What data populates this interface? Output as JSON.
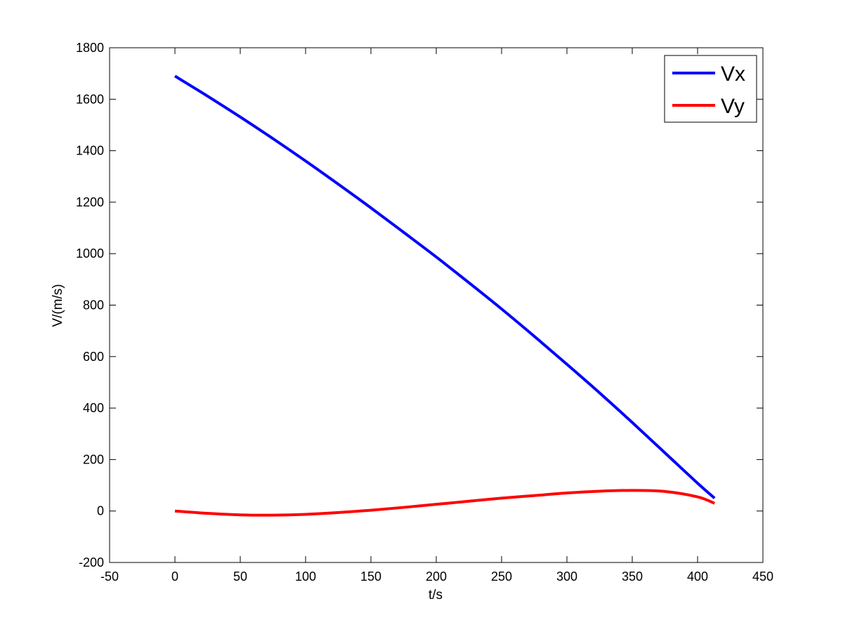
{
  "chart_data": {
    "type": "line",
    "title": "",
    "xlabel": "t/s",
    "ylabel": "V/(m/s)",
    "xlim": [
      -50,
      450
    ],
    "ylim": [
      -200,
      1800
    ],
    "xticks": [
      "-50",
      "0",
      "50",
      "100",
      "150",
      "200",
      "250",
      "300",
      "350",
      "400",
      "450"
    ],
    "yticks": [
      "-200",
      "0",
      "200",
      "400",
      "600",
      "800",
      "1000",
      "1200",
      "1400",
      "1600",
      "1800"
    ],
    "grid": false,
    "legend": {
      "position": "top-right",
      "entries": [
        "Vx",
        "Vy"
      ]
    },
    "series": [
      {
        "name": "Vx",
        "color": "#0000ff",
        "x": [
          0,
          25,
          50,
          75,
          100,
          125,
          150,
          175,
          200,
          225,
          250,
          275,
          300,
          325,
          350,
          375,
          400,
          413
        ],
        "y": [
          1690,
          1612,
          1531,
          1447,
          1360,
          1270,
          1178,
          1083,
          987,
          887,
          785,
          679,
          570,
          459,
          344,
          226,
          108,
          50
        ]
      },
      {
        "name": "Vy",
        "color": "#ff0000",
        "x": [
          0,
          25,
          50,
          75,
          100,
          125,
          150,
          175,
          200,
          225,
          250,
          275,
          300,
          325,
          350,
          375,
          400,
          413
        ],
        "y": [
          0,
          -9,
          -15,
          -16,
          -13,
          -6,
          3,
          14,
          26,
          38,
          50,
          60,
          70,
          77,
          80,
          76,
          55,
          30
        ]
      }
    ]
  }
}
